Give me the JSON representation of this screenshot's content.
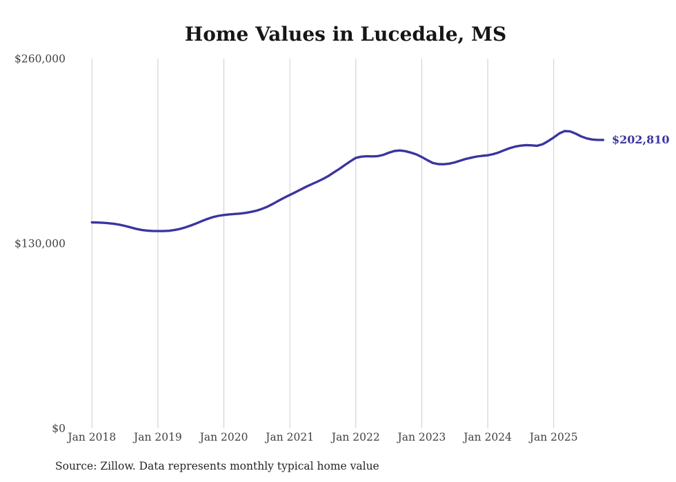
{
  "chart_data": {
    "type": "line",
    "title": "Home Values in Lucedale, MS",
    "source_note": "Source: Zillow. Data represents monthly typical home value",
    "end_label": "$202,810",
    "line_color": "#3a34a0",
    "grid_color": "#cccccc",
    "axis_text_color": "#414141",
    "ylim": [
      0,
      260000
    ],
    "grid": "vertical-only",
    "legend": "none",
    "y_ticks": [
      {
        "value": 260000,
        "label": "$260,000"
      },
      {
        "value": 130000,
        "label": "$130,000"
      },
      {
        "value": 0,
        "label": "$0"
      }
    ],
    "x_ticks": [
      "Jan 2018",
      "Jan 2019",
      "Jan 2020",
      "Jan 2021",
      "Jan 2022",
      "Jan 2023",
      "Jan 2024",
      "Jan 2025"
    ],
    "x_start_month": "Jan 2018",
    "x_end_month": "Oct 2025",
    "months_per_point": 1,
    "series": [
      {
        "name": "Typical home value",
        "values": [
          144800,
          144700,
          144500,
          144200,
          143800,
          143200,
          142300,
          141300,
          140300,
          139500,
          139000,
          138800,
          138700,
          138700,
          138900,
          139400,
          140200,
          141300,
          142600,
          144100,
          145700,
          147200,
          148500,
          149400,
          150000,
          150400,
          150700,
          151000,
          151500,
          152200,
          153100,
          154400,
          156000,
          158000,
          160100,
          162200,
          164100,
          166000,
          168000,
          169900,
          171700,
          173400,
          175300,
          177400,
          179900,
          182400,
          185100,
          187700,
          190200,
          191000,
          191300,
          191200,
          191400,
          192300,
          193800,
          195000,
          195400,
          194900,
          193900,
          192600,
          190800,
          188600,
          186600,
          185800,
          185700,
          186100,
          187000,
          188200,
          189400,
          190300,
          191100,
          191600,
          192000,
          192800,
          194000,
          195600,
          197000,
          198100,
          198800,
          199100,
          199000,
          198700,
          199800,
          202000,
          204500,
          207300,
          209000,
          208800,
          207200,
          205300,
          203900,
          203100,
          202800,
          202810
        ]
      }
    ]
  }
}
